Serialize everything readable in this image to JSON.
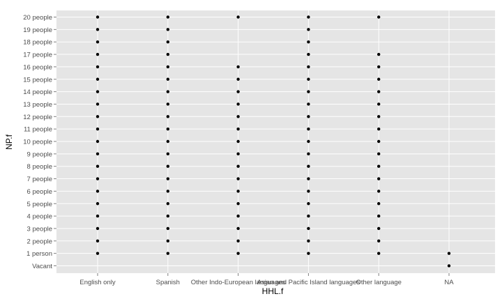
{
  "chart_data": {
    "type": "scatter",
    "xlabel": "HHL.f",
    "ylabel": "NP.f",
    "x_categories": [
      "English only",
      "Spanish",
      "Other Indo-European languages",
      "Asian and Pacific Island languages",
      "Other language",
      "NA"
    ],
    "y_categories": [
      "Vacant",
      "1 person",
      "2 people",
      "3 people",
      "4 people",
      "5 people",
      "6 people",
      "7 people",
      "8 people",
      "9 people",
      "10 people",
      "11 people",
      "12 people",
      "13 people",
      "14 people",
      "15 people",
      "16 people",
      "17 people",
      "18 people",
      "19 people",
      "20 people"
    ],
    "points": [
      {
        "x": "English only",
        "y": [
          "1 person",
          "2 people",
          "3 people",
          "4 people",
          "5 people",
          "6 people",
          "7 people",
          "8 people",
          "9 people",
          "10 people",
          "11 people",
          "12 people",
          "13 people",
          "14 people",
          "15 people",
          "16 people",
          "17 people",
          "18 people",
          "19 people",
          "20 people"
        ]
      },
      {
        "x": "Spanish",
        "y": [
          "1 person",
          "2 people",
          "3 people",
          "4 people",
          "5 people",
          "6 people",
          "7 people",
          "8 people",
          "9 people",
          "10 people",
          "11 people",
          "12 people",
          "13 people",
          "14 people",
          "15 people",
          "16 people",
          "17 people",
          "18 people",
          "19 people",
          "20 people"
        ]
      },
      {
        "x": "Other Indo-European languages",
        "y": [
          "1 person",
          "2 people",
          "3 people",
          "4 people",
          "5 people",
          "6 people",
          "7 people",
          "8 people",
          "9 people",
          "10 people",
          "11 people",
          "12 people",
          "13 people",
          "14 people",
          "15 people",
          "16 people",
          "20 people"
        ]
      },
      {
        "x": "Asian and Pacific Island languages",
        "y": [
          "1 person",
          "2 people",
          "3 people",
          "4 people",
          "5 people",
          "6 people",
          "7 people",
          "8 people",
          "9 people",
          "10 people",
          "11 people",
          "12 people",
          "13 people",
          "14 people",
          "15 people",
          "16 people",
          "17 people",
          "18 people",
          "19 people",
          "20 people"
        ]
      },
      {
        "x": "Other language",
        "y": [
          "1 person",
          "2 people",
          "3 people",
          "4 people",
          "5 people",
          "6 people",
          "7 people",
          "8 people",
          "9 people",
          "10 people",
          "11 people",
          "12 people",
          "13 people",
          "14 people",
          "15 people",
          "16 people",
          "17 people",
          "20 people"
        ]
      },
      {
        "x": "NA",
        "y": [
          "Vacant",
          "1 person"
        ]
      }
    ],
    "grid": true,
    "legend": "none",
    "colors": {
      "panel_background": "#e5e5e5",
      "gridline": "#ffffff",
      "point": "#000000",
      "tick_text": "#4d4d4d",
      "title_text": "#000000"
    }
  }
}
